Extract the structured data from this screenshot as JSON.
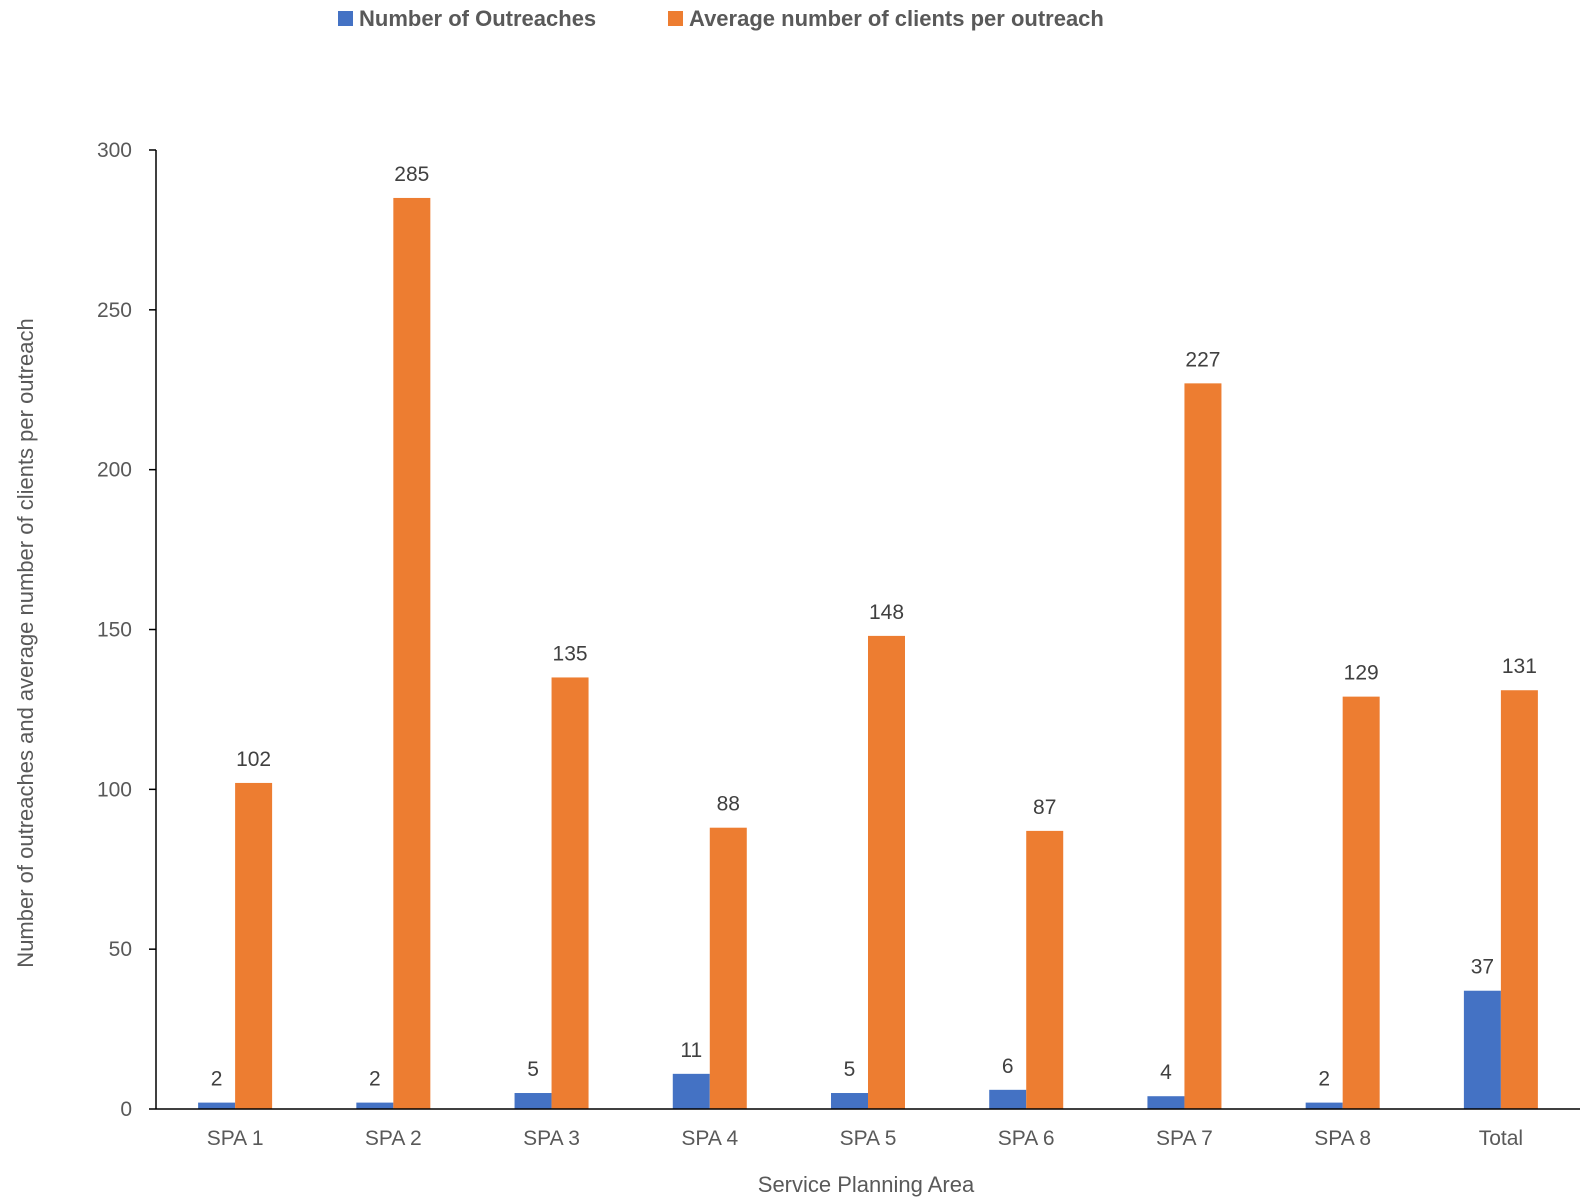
{
  "chart_data": {
    "type": "bar",
    "title": "",
    "xlabel": "Service Planning Area",
    "ylabel": "Number of outreaches and average number of clients per outreach",
    "ylim": [
      0,
      300
    ],
    "yticks": [
      "0",
      "50",
      "100",
      "150",
      "200",
      "250",
      "300"
    ],
    "categories": [
      "SPA 1",
      "SPA 2",
      "SPA 3",
      "SPA 4",
      "SPA 5",
      "SPA 6",
      "SPA 7",
      "SPA 8",
      "Total"
    ],
    "series": [
      {
        "name": "Number of Outreaches",
        "color": "#4472C4",
        "values": [
          2,
          2,
          5,
          11,
          5,
          6,
          4,
          2,
          37
        ],
        "labels": [
          "2",
          "2",
          "5",
          "11",
          "5",
          "6",
          "4",
          "2",
          "37"
        ]
      },
      {
        "name": "Average number of clients per outreach",
        "color": "#ED7D31",
        "values": [
          102,
          285,
          135,
          88,
          148,
          87,
          227,
          129,
          131
        ],
        "labels": [
          "102",
          "285",
          "135",
          "88",
          "148",
          "87",
          "227",
          "129",
          "131"
        ]
      }
    ],
    "legend_position": "top",
    "grid": false
  }
}
